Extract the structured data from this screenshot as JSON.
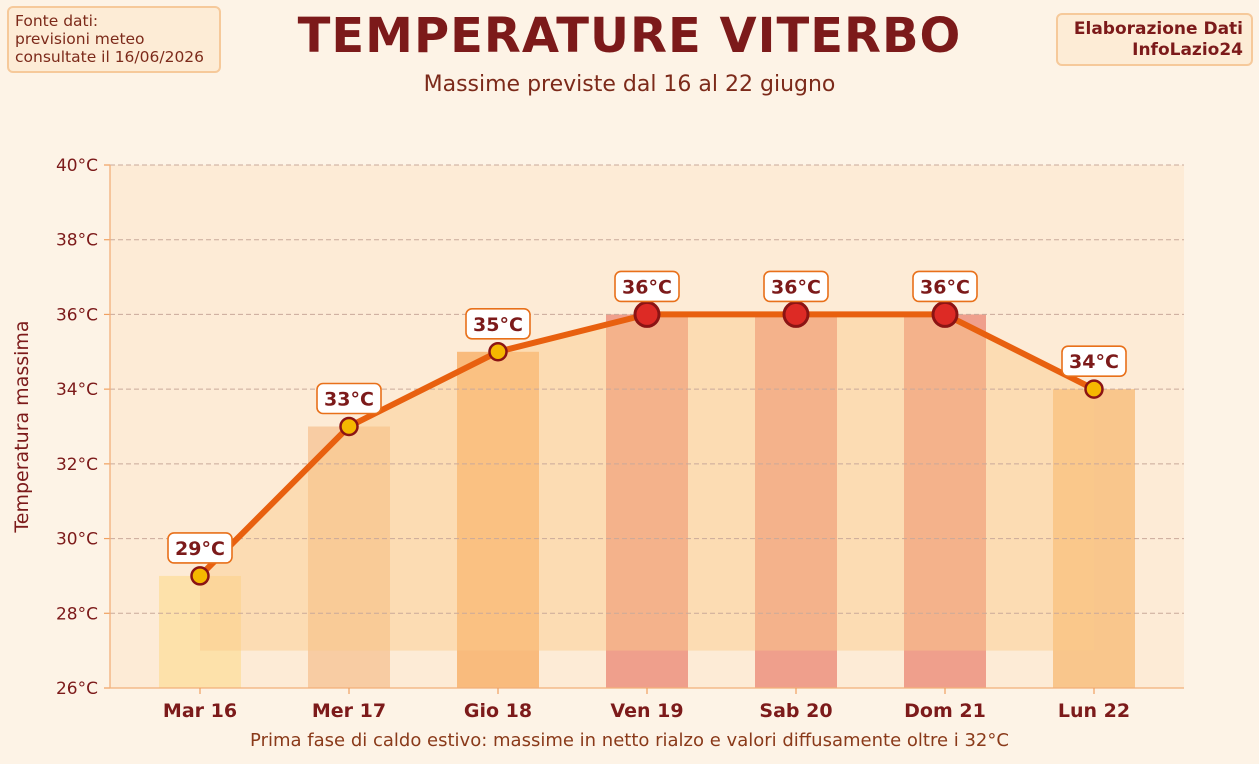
{
  "header": {
    "title": "TEMPERATURE VITERBO",
    "subtitle": "Massime previste dal 16 al 22 giugno"
  },
  "source": {
    "lines": [
      "Fonte dati:",
      "previsioni meteo",
      "consultate il 16/06/2026"
    ]
  },
  "credit": {
    "lines": [
      "Elaborazione Dati",
      "InfoLazio24"
    ]
  },
  "footnote": "Prima fase di caldo estivo: massime in netto rialzo e valori diffusamente oltre i 32°C",
  "colors": {
    "background": "#fdf3e6",
    "plot_background": "#fdebd6",
    "line": "#e8600f",
    "title": "#7c1a1a",
    "point_normal": "#f5b800",
    "point_hot": "#dd2a25",
    "point_edge": "#8b1414",
    "label_border": "#e8701a"
  },
  "chart_data": {
    "type": "line",
    "title": "TEMPERATURE VITERBO",
    "subtitle": "Massime previste dal 16 al 22 giugno",
    "xlabel": "",
    "ylabel": "Temperatura massima",
    "categories": [
      "Mar 16",
      "Mer 17",
      "Gio 18",
      "Ven 19",
      "Sab 20",
      "Dom 21",
      "Lun 22"
    ],
    "values": [
      29,
      33,
      35,
      36,
      36,
      36,
      34
    ],
    "value_labels": [
      "29°C",
      "33°C",
      "35°C",
      "36°C",
      "36°C",
      "36°C",
      "34°C"
    ],
    "ylim": [
      26,
      40
    ],
    "yticks": [
      26,
      28,
      30,
      32,
      34,
      36,
      38,
      40
    ],
    "ytick_labels": [
      "26°C",
      "28°C",
      "30°C",
      "32°C",
      "34°C",
      "36°C",
      "38°C",
      "40°C"
    ],
    "bar_colors": [
      "#fde0a8",
      "#f8caa0",
      "#f9b878",
      "#ee9b88",
      "#ee9b88",
      "#ee9b88",
      "#f9c488"
    ],
    "point_colors": [
      "#f5b800",
      "#f5b800",
      "#f5b800",
      "#dd2a25",
      "#dd2a25",
      "#dd2a25",
      "#f5b800"
    ],
    "area_fill_base": 27,
    "grid": true,
    "legend": "none"
  }
}
